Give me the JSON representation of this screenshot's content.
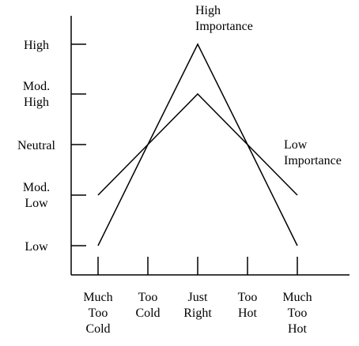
{
  "chart_data": {
    "type": "line",
    "title": "",
    "xlabel": "",
    "ylabel": "",
    "grid": false,
    "categories": [
      [
        "Much",
        "Too",
        "Cold"
      ],
      [
        "Too",
        "Cold"
      ],
      [
        "Just",
        "Right"
      ],
      [
        "Too",
        "Hot"
      ],
      [
        "Much",
        "Too",
        "Hot"
      ]
    ],
    "y_levels": [
      [
        "Low"
      ],
      [
        "Mod.",
        "Low"
      ],
      [
        "Neutral"
      ],
      [
        "Mod.",
        "High"
      ],
      [
        "High"
      ]
    ],
    "ylim": [
      0,
      4
    ],
    "series": [
      {
        "name": [
          "High",
          "Importance"
        ],
        "values": [
          0,
          2,
          4,
          2,
          0
        ]
      },
      {
        "name": [
          "Low",
          "Importance"
        ],
        "values": [
          1,
          2,
          3,
          2,
          1
        ]
      }
    ],
    "colors": {
      "line": "#000000",
      "axis": "#000000"
    }
  }
}
